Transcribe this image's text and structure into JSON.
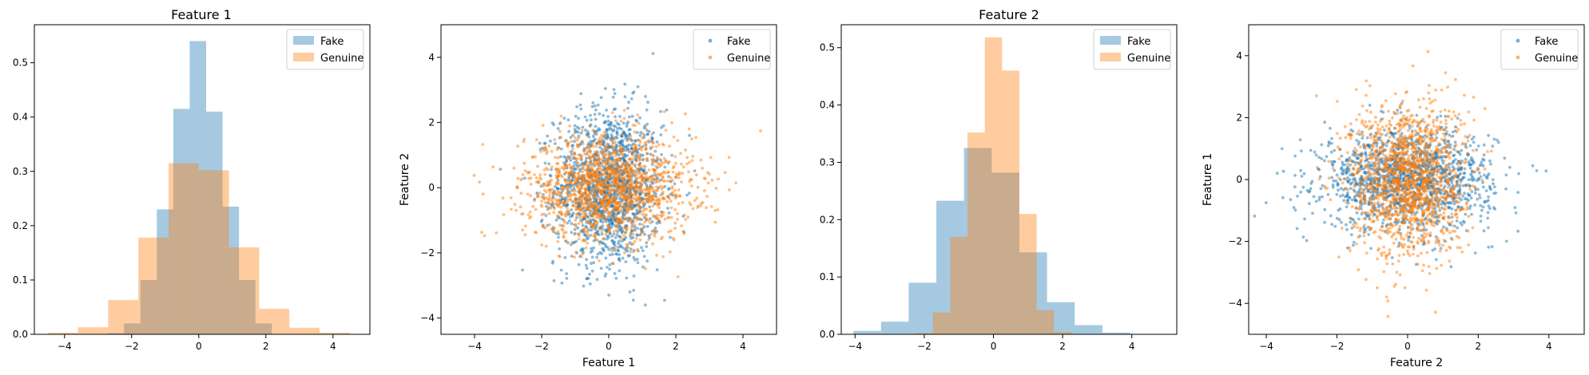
{
  "colors": {
    "fake": "#1f77b4",
    "genuine": "#ff7f0e",
    "hist_fake": "#a6c8e0",
    "hist_genuine": "#ffc899"
  },
  "chart_data": [
    {
      "type": "histogram",
      "title": "Feature 1",
      "xlabel": "",
      "ylabel": "",
      "xlim": [
        -4.9,
        5.1
      ],
      "ylim": [
        0,
        0.57
      ],
      "xticks": [
        -4,
        -2,
        0,
        2,
        4
      ],
      "yticks": [
        0.0,
        0.1,
        0.2,
        0.3,
        0.4,
        0.5
      ],
      "legend": "top-right",
      "series": [
        {
          "name": "Fake",
          "bin_edges": [
            -3.7,
            -3.21,
            -2.72,
            -2.23,
            -1.74,
            -1.25,
            -0.76,
            -0.27,
            0.22,
            0.71,
            1.2,
            1.69,
            2.18,
            2.67,
            3.16,
            3.65
          ],
          "values": [
            0,
            0,
            0.002,
            0.02,
            0.1,
            0.23,
            0.415,
            0.54,
            0.41,
            0.235,
            0.1,
            0.02,
            0,
            0,
            0
          ]
        },
        {
          "name": "Genuine",
          "bin_edges": [
            -4.5,
            -3.6,
            -2.7,
            -1.8,
            -0.9,
            0,
            0.9,
            1.8,
            2.7,
            3.6,
            4.5
          ],
          "values": [
            0.003,
            0.013,
            0.063,
            0.178,
            0.315,
            0.302,
            0.16,
            0.047,
            0.012,
            0.003
          ]
        }
      ]
    },
    {
      "type": "scatter",
      "title": "",
      "xlabel": "Feature 1",
      "ylabel": "Feature 2",
      "xlim": [
        -5,
        5
      ],
      "ylim": [
        -4.5,
        5
      ],
      "xticks": [
        -4,
        -2,
        0,
        2,
        4
      ],
      "yticks": [
        -4,
        -2,
        0,
        2,
        4
      ],
      "legend": "top-right",
      "series": [
        {
          "name": "Fake",
          "n": 1500,
          "x_std": 0.8,
          "y_std": 1.2
        },
        {
          "name": "Genuine",
          "n": 1500,
          "x_std": 1.25,
          "y_std": 0.8
        }
      ]
    },
    {
      "type": "histogram",
      "title": "Feature 2",
      "xlabel": "",
      "ylabel": "",
      "xlim": [
        -4.4,
        5.3
      ],
      "ylim": [
        0,
        0.54
      ],
      "xticks": [
        -4,
        -2,
        0,
        2,
        4
      ],
      "yticks": [
        0.0,
        0.1,
        0.2,
        0.3,
        0.4,
        0.5
      ],
      "legend": "top-right",
      "series": [
        {
          "name": "Fake",
          "bin_edges": [
            -4.05,
            -3.25,
            -2.45,
            -1.65,
            -0.85,
            -0.05,
            0.75,
            1.55,
            2.35,
            3.15,
            3.95,
            4.75
          ],
          "values": [
            0.006,
            0.022,
            0.09,
            0.233,
            0.325,
            0.282,
            0.143,
            0.056,
            0.016,
            0.003,
            0
          ]
        },
        {
          "name": "Genuine",
          "bin_edges": [
            -2.25,
            -1.75,
            -1.25,
            -0.75,
            -0.25,
            0.25,
            0.75,
            1.25,
            1.75,
            2.25
          ],
          "values": [
            0.002,
            0.038,
            0.17,
            0.352,
            0.518,
            0.46,
            0.21,
            0.042,
            0.004
          ]
        }
      ]
    },
    {
      "type": "scatter",
      "title": "",
      "xlabel": "Feature 2",
      "ylabel": "Feature 1",
      "xlim": [
        -4.5,
        5
      ],
      "ylim": [
        -5,
        5
      ],
      "xticks": [
        -4,
        -2,
        0,
        2,
        4
      ],
      "yticks": [
        -4,
        -2,
        0,
        2,
        4
      ],
      "legend": "top-right",
      "series": [
        {
          "name": "Fake",
          "n": 1500,
          "x_std": 1.2,
          "y_std": 0.8
        },
        {
          "name": "Genuine",
          "n": 1500,
          "x_std": 0.8,
          "y_std": 1.25
        }
      ]
    }
  ]
}
